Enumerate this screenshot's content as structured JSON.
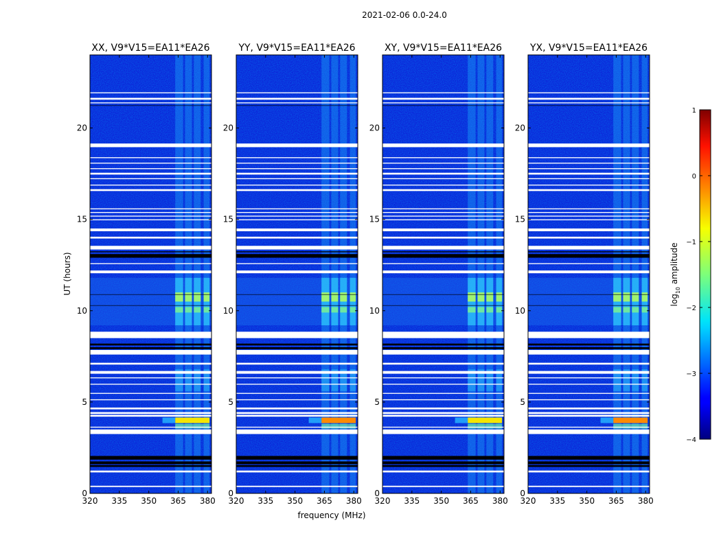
{
  "suptitle": "2021-02-06 0.0-24.0",
  "chart_data": {
    "type": "heatmap",
    "xlabel": "frequency (MHz)",
    "ylabel": "UT (hours)",
    "xlim": [
      320,
      382
    ],
    "ylim": [
      0,
      24
    ],
    "xticks": [
      320,
      335,
      350,
      365,
      380
    ],
    "yticks": [
      0,
      5,
      10,
      15,
      20
    ],
    "panels": [
      {
        "title": "XX, V9*V15=EA11*EA26",
        "flare_level": 0.78
      },
      {
        "title": "YY, V9*V15=EA11*EA26",
        "flare_level": 0.92
      },
      {
        "title": "XY, V9*V15=EA11*EA26",
        "flare_level": 0.82
      },
      {
        "title": "YX, V9*V15=EA11*EA26",
        "flare_level": 0.86
      }
    ],
    "rfi_bands_mhz": [
      [
        363.5,
        367.5
      ],
      [
        368.5,
        372.0
      ],
      [
        373.0,
        376.5
      ],
      [
        378.0,
        381.0
      ]
    ],
    "active_periods_ut": [
      [
        9.2,
        11.8
      ],
      [
        3.85,
        4.15
      ],
      [
        5.6,
        6.8
      ]
    ],
    "white_flagged_ut": [
      [
        0.35,
        0.42
      ],
      [
        1.15,
        1.25
      ],
      [
        3.25,
        3.5
      ],
      [
        3.6,
        3.65
      ],
      [
        4.2,
        4.3
      ],
      [
        4.35,
        4.45
      ],
      [
        4.6,
        4.7
      ],
      [
        5.1,
        5.15
      ],
      [
        5.45,
        5.5
      ],
      [
        5.95,
        6.0
      ],
      [
        6.3,
        6.35
      ],
      [
        6.55,
        6.7
      ],
      [
        7.05,
        7.15
      ],
      [
        7.6,
        7.85
      ],
      [
        8.5,
        8.85
      ],
      [
        12.05,
        12.2
      ],
      [
        12.55,
        12.6
      ],
      [
        13.35,
        13.55
      ],
      [
        13.95,
        14.05
      ],
      [
        14.35,
        14.5
      ],
      [
        14.95,
        15.0
      ],
      [
        15.15,
        15.2
      ],
      [
        15.35,
        15.4
      ],
      [
        15.55,
        15.6
      ],
      [
        16.55,
        16.65
      ],
      [
        16.85,
        16.9
      ],
      [
        17.2,
        17.25
      ],
      [
        17.45,
        17.55
      ],
      [
        17.75,
        17.8
      ],
      [
        18.05,
        18.1
      ],
      [
        18.35,
        18.4
      ],
      [
        18.95,
        19.15
      ],
      [
        21.35,
        21.4
      ],
      [
        21.55,
        21.65
      ],
      [
        21.9,
        21.95
      ]
    ],
    "black_flagged_ut": [
      [
        1.45,
        1.55
      ],
      [
        1.6,
        1.75
      ],
      [
        1.85,
        2.05
      ],
      [
        7.9,
        8.0
      ],
      [
        8.1,
        8.2
      ],
      [
        12.9,
        13.1
      ],
      [
        13.2,
        13.25
      ]
    ],
    "colorbar": {
      "label": "log10 amplitude",
      "label_base": "log",
      "label_sub": "10",
      "label_rest": " amplitude",
      "range": [
        -4,
        1
      ],
      "ticks": [
        "1",
        "0",
        "−1",
        "−2",
        "−3",
        "−4"
      ],
      "colormap": "jet"
    }
  }
}
